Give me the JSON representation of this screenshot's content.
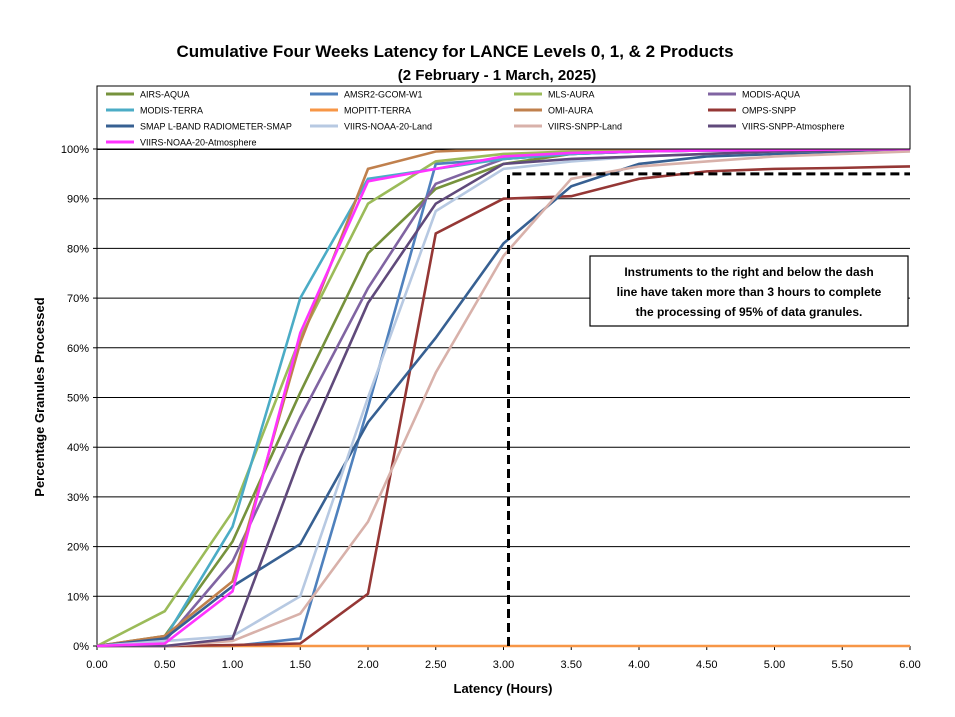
{
  "chart_data": {
    "type": "line",
    "title": "Cumulative Four Weeks Latency  for LANCE Levels 0, 1, & 2 Products",
    "subtitle": "(2  February   -  1  March,  2025)",
    "xlabel": "Latency (Hours)",
    "ylabel": "Percentage Granules Processed",
    "xlim": [
      0,
      6
    ],
    "ylim": [
      0,
      100
    ],
    "x_ticks": [
      "0.00",
      "0.50",
      "1.00",
      "1.50",
      "2.00",
      "2.50",
      "3.00",
      "3.50",
      "4.00",
      "4.50",
      "5.00",
      "5.50",
      "6.00"
    ],
    "y_ticks": [
      "0%",
      "10%",
      "20%",
      "30%",
      "40%",
      "50%",
      "60%",
      "70%",
      "80%",
      "90%",
      "100%"
    ],
    "grid": "horizontal",
    "legend_position": "top",
    "x": [
      0,
      0.5,
      1.0,
      1.5,
      2.0,
      2.5,
      3.0,
      3.5,
      4.0,
      4.5,
      5.0,
      5.5,
      6.0
    ],
    "series": [
      {
        "name": "AIRS-AQUA",
        "color": "#76923c",
        "values": [
          0,
          2,
          21,
          51,
          79,
          92,
          97,
          99,
          99.5,
          99.7,
          99.8,
          99.9,
          100
        ]
      },
      {
        "name": "AMSR2-GCOM-W1",
        "color": "#4f81bd",
        "values": [
          0,
          0,
          0,
          1.5,
          48,
          97,
          98,
          99,
          99.5,
          99.7,
          99.8,
          99.9,
          100
        ]
      },
      {
        "name": "MLS-AURA",
        "color": "#9bbb59",
        "values": [
          0,
          7,
          27,
          62,
          89,
          97.5,
          99,
          99.5,
          99.7,
          99.8,
          99.9,
          100,
          100
        ]
      },
      {
        "name": "MODIS-AQUA",
        "color": "#8064a2",
        "values": [
          0,
          1,
          17,
          46,
          72,
          93,
          98,
          99,
          99.5,
          99.7,
          99.8,
          99.9,
          100
        ]
      },
      {
        "name": "MODIS-TERRA",
        "color": "#4bacc6",
        "values": [
          0,
          1.5,
          24,
          70,
          94,
          96,
          98,
          99,
          99.5,
          99.7,
          99.8,
          99.9,
          100
        ]
      },
      {
        "name": "MOPITT-TERRA",
        "color": "#f79646",
        "values": [
          0,
          0,
          0,
          0,
          0,
          0,
          0,
          0,
          0,
          0,
          0,
          0,
          0
        ]
      },
      {
        "name": "OMI-AURA",
        "color": "#c0804d",
        "values": [
          0,
          2,
          13,
          61,
          96,
          99.5,
          100,
          100,
          100,
          100,
          100,
          100,
          100
        ]
      },
      {
        "name": "OMPS-SNPP",
        "color": "#953735",
        "values": [
          0,
          0,
          0.2,
          0.5,
          10.5,
          83,
          90,
          90.5,
          94,
          95.5,
          96,
          96.2,
          96.5
        ]
      },
      {
        "name": "SMAP L-BAND RADIOMETER-SMAP",
        "color": "#376092",
        "values": [
          0,
          1.5,
          12,
          20.5,
          45,
          62,
          81,
          92.5,
          97,
          98.5,
          99,
          99.5,
          100
        ]
      },
      {
        "name": "VIIRS-NOAA-20-Land",
        "color": "#b7c9e2",
        "values": [
          0,
          1,
          2,
          10,
          50,
          87.5,
          96,
          97.5,
          98.5,
          99,
          99.5,
          99.7,
          100
        ]
      },
      {
        "name": "VIIRS-SNPP-Land",
        "color": "#d8b1aa",
        "values": [
          0,
          0,
          1,
          6.5,
          25,
          55,
          78.5,
          94,
          96.5,
          97.5,
          98.5,
          99,
          99.5
        ]
      },
      {
        "name": "VIIRS-SNPP-Atmosphere",
        "color": "#604a7b",
        "values": [
          0,
          0,
          1.5,
          38,
          69,
          89,
          97,
          98,
          98.5,
          99,
          99.5,
          99.7,
          100
        ]
      },
      {
        "name": "VIIRS-NOAA-20-Atmosphere",
        "color": "#ff33ff",
        "values": [
          0,
          0.5,
          11,
          63,
          93.5,
          96,
          98.5,
          99.2,
          99.5,
          99.7,
          99.8,
          99.9,
          100
        ]
      }
    ],
    "threshold": {
      "x": 3.0,
      "y": 95,
      "style": "dashed",
      "color": "#000000"
    },
    "annotation": {
      "lines": [
        "Instruments to the right and below the dash",
        "line have taken more than 3 hours to complete",
        "the processing of 95% of data granules."
      ]
    }
  }
}
